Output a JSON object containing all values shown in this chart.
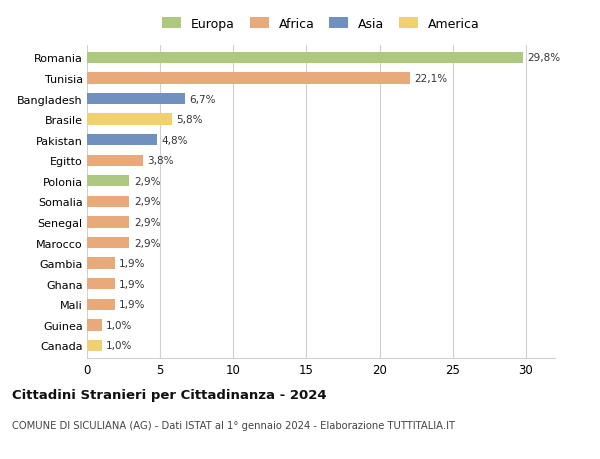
{
  "countries": [
    "Romania",
    "Tunisia",
    "Bangladesh",
    "Brasile",
    "Pakistan",
    "Egitto",
    "Polonia",
    "Somalia",
    "Senegal",
    "Marocco",
    "Gambia",
    "Ghana",
    "Mali",
    "Guinea",
    "Canada"
  ],
  "values": [
    29.8,
    22.1,
    6.7,
    5.8,
    4.8,
    3.8,
    2.9,
    2.9,
    2.9,
    2.9,
    1.9,
    1.9,
    1.9,
    1.0,
    1.0
  ],
  "labels": [
    "29,8%",
    "22,1%",
    "6,7%",
    "5,8%",
    "4,8%",
    "3,8%",
    "2,9%",
    "2,9%",
    "2,9%",
    "2,9%",
    "1,9%",
    "1,9%",
    "1,9%",
    "1,0%",
    "1,0%"
  ],
  "continents": [
    "Europa",
    "Africa",
    "Asia",
    "America",
    "Asia",
    "Africa",
    "Europa",
    "Africa",
    "Africa",
    "Africa",
    "Africa",
    "Africa",
    "Africa",
    "Africa",
    "America"
  ],
  "colors": {
    "Europa": "#adc97f",
    "Africa": "#e8aa7a",
    "Asia": "#7090bf",
    "America": "#f0d070"
  },
  "title": "Cittadini Stranieri per Cittadinanza - 2024",
  "subtitle": "COMUNE DI SICULIANA (AG) - Dati ISTAT al 1° gennaio 2024 - Elaborazione TUTTITALIA.IT",
  "xlim": [
    0,
    32
  ],
  "xticks": [
    0,
    5,
    10,
    15,
    20,
    25,
    30
  ],
  "background_color": "#ffffff",
  "grid_color": "#d0d0d0"
}
